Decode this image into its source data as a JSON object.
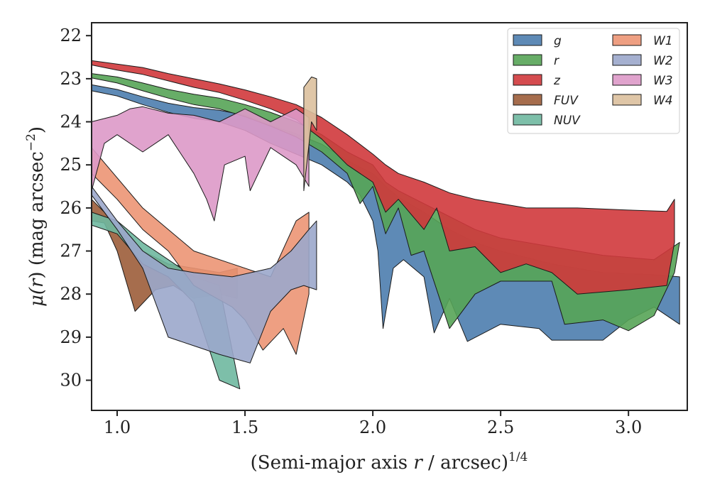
{
  "chart_data": {
    "type": "area",
    "xlabel": {
      "main": "(Semi-major axis ",
      "var": "r",
      "rest": " / arcsec)",
      "sup": "1/4"
    },
    "ylabel": {
      "mu": "μ(",
      "var": "r",
      "rest": ") (mag arcsec",
      "sup": "−2",
      "end": ")"
    },
    "xlim": [
      0.9,
      3.23
    ],
    "ylim": [
      30.7,
      21.7
    ],
    "y_inverted": true,
    "xticks": [
      1.0,
      1.5,
      2.0,
      2.5,
      3.0
    ],
    "xtick_labels": [
      "1.0",
      "1.5",
      "2.0",
      "2.5",
      "3.0"
    ],
    "yticks": [
      22,
      23,
      24,
      25,
      26,
      27,
      28,
      29,
      30
    ],
    "ytick_labels": [
      "22",
      "23",
      "24",
      "25",
      "26",
      "27",
      "28",
      "29",
      "30"
    ],
    "grid": false,
    "legend_position": "top-right",
    "legend_columns": 2,
    "series": [
      {
        "name": "g",
        "color": "#4c7dae",
        "upper": [
          [
            0.9,
            23.14
          ],
          [
            1.0,
            23.25
          ],
          [
            1.1,
            23.42
          ],
          [
            1.2,
            23.57
          ],
          [
            1.3,
            23.67
          ],
          [
            1.4,
            23.73
          ],
          [
            1.5,
            23.85
          ],
          [
            1.6,
            24.08
          ],
          [
            1.7,
            24.28
          ],
          [
            1.8,
            24.52
          ],
          [
            1.9,
            24.9
          ],
          [
            2.0,
            25.2
          ],
          [
            2.05,
            25.5
          ],
          [
            2.1,
            25.75
          ],
          [
            2.2,
            26.1
          ],
          [
            2.3,
            26.5
          ],
          [
            2.4,
            26.8
          ],
          [
            2.5,
            27.0
          ],
          [
            2.7,
            27.3
          ],
          [
            2.9,
            27.5
          ],
          [
            3.1,
            27.55
          ],
          [
            3.2,
            27.6
          ]
        ],
        "lower": [
          [
            0.9,
            23.28
          ],
          [
            1.0,
            23.4
          ],
          [
            1.1,
            23.6
          ],
          [
            1.2,
            23.78
          ],
          [
            1.3,
            23.92
          ],
          [
            1.4,
            24.0
          ],
          [
            1.5,
            24.2
          ],
          [
            1.6,
            24.5
          ],
          [
            1.7,
            24.75
          ],
          [
            1.8,
            25.0
          ],
          [
            1.9,
            25.4
          ],
          [
            1.95,
            25.7
          ],
          [
            2.0,
            26.3
          ],
          [
            2.02,
            27.0
          ],
          [
            2.04,
            28.8
          ],
          [
            2.08,
            27.4
          ],
          [
            2.12,
            27.2
          ],
          [
            2.2,
            27.6
          ],
          [
            2.24,
            28.9
          ],
          [
            2.3,
            28.1
          ],
          [
            2.37,
            29.1
          ],
          [
            2.5,
            28.7
          ],
          [
            2.65,
            28.8
          ],
          [
            2.7,
            29.07
          ],
          [
            2.9,
            29.07
          ],
          [
            3.0,
            28.6
          ],
          [
            3.1,
            28.3
          ],
          [
            3.2,
            28.7
          ]
        ]
      },
      {
        "name": "r",
        "color": "#56a456",
        "upper": [
          [
            0.9,
            22.88
          ],
          [
            1.0,
            22.96
          ],
          [
            1.1,
            23.1
          ],
          [
            1.2,
            23.25
          ],
          [
            1.3,
            23.36
          ],
          [
            1.4,
            23.45
          ],
          [
            1.5,
            23.6
          ],
          [
            1.6,
            23.78
          ],
          [
            1.7,
            24.0
          ],
          [
            1.8,
            24.3
          ],
          [
            1.9,
            24.7
          ],
          [
            2.0,
            25.0
          ],
          [
            2.05,
            25.4
          ],
          [
            2.1,
            25.6
          ],
          [
            2.2,
            25.9
          ],
          [
            2.3,
            26.2
          ],
          [
            2.4,
            26.5
          ],
          [
            2.5,
            26.7
          ],
          [
            2.7,
            26.9
          ],
          [
            2.9,
            27.1
          ],
          [
            3.1,
            27.2
          ],
          [
            3.2,
            26.8
          ]
        ],
        "lower": [
          [
            0.9,
            22.98
          ],
          [
            1.0,
            23.1
          ],
          [
            1.1,
            23.28
          ],
          [
            1.2,
            23.45
          ],
          [
            1.3,
            23.6
          ],
          [
            1.4,
            23.7
          ],
          [
            1.5,
            23.88
          ],
          [
            1.6,
            24.1
          ],
          [
            1.7,
            24.35
          ],
          [
            1.8,
            24.7
          ],
          [
            1.9,
            25.2
          ],
          [
            1.95,
            25.9
          ],
          [
            2.0,
            25.5
          ],
          [
            2.05,
            26.6
          ],
          [
            2.1,
            26.0
          ],
          [
            2.15,
            27.1
          ],
          [
            2.2,
            27.0
          ],
          [
            2.3,
            28.8
          ],
          [
            2.4,
            28.0
          ],
          [
            2.5,
            27.7
          ],
          [
            2.7,
            27.7
          ],
          [
            2.75,
            28.7
          ],
          [
            2.9,
            28.6
          ],
          [
            3.0,
            28.85
          ],
          [
            3.1,
            28.5
          ],
          [
            3.18,
            27.5
          ]
        ]
      },
      {
        "name": "z",
        "color": "#d0393c",
        "upper": [
          [
            0.9,
            22.58
          ],
          [
            1.0,
            22.66
          ],
          [
            1.1,
            22.74
          ],
          [
            1.2,
            22.88
          ],
          [
            1.3,
            23.0
          ],
          [
            1.4,
            23.12
          ],
          [
            1.5,
            23.26
          ],
          [
            1.6,
            23.42
          ],
          [
            1.7,
            23.6
          ],
          [
            1.8,
            23.9
          ],
          [
            1.9,
            24.3
          ],
          [
            2.0,
            24.75
          ],
          [
            2.05,
            25.0
          ],
          [
            2.1,
            25.2
          ],
          [
            2.2,
            25.4
          ],
          [
            2.3,
            25.65
          ],
          [
            2.4,
            25.8
          ],
          [
            2.5,
            25.9
          ],
          [
            2.6,
            26.0
          ],
          [
            2.8,
            26.0
          ],
          [
            3.0,
            26.05
          ],
          [
            3.15,
            26.08
          ],
          [
            3.18,
            25.8
          ]
        ],
        "lower": [
          [
            0.9,
            22.68
          ],
          [
            1.0,
            22.8
          ],
          [
            1.1,
            22.9
          ],
          [
            1.2,
            23.05
          ],
          [
            1.3,
            23.2
          ],
          [
            1.4,
            23.32
          ],
          [
            1.5,
            23.5
          ],
          [
            1.6,
            23.7
          ],
          [
            1.7,
            23.95
          ],
          [
            1.8,
            24.4
          ],
          [
            1.9,
            25.0
          ],
          [
            2.0,
            25.4
          ],
          [
            2.05,
            26.1
          ],
          [
            2.1,
            25.8
          ],
          [
            2.2,
            26.5
          ],
          [
            2.25,
            26.0
          ],
          [
            2.3,
            27.0
          ],
          [
            2.4,
            26.9
          ],
          [
            2.5,
            27.5
          ],
          [
            2.6,
            27.3
          ],
          [
            2.7,
            27.5
          ],
          [
            2.8,
            28.0
          ],
          [
            3.0,
            27.9
          ],
          [
            3.15,
            27.8
          ],
          [
            3.18,
            26.8
          ]
        ]
      },
      {
        "name": "FUV",
        "color": "#9c5d3a",
        "upper": [
          [
            0.9,
            25.8
          ],
          [
            0.95,
            26.1
          ],
          [
            1.0,
            26.5
          ],
          [
            1.1,
            27.0
          ],
          [
            1.2,
            27.3
          ],
          [
            1.3,
            27.4
          ],
          [
            1.4,
            27.5
          ],
          [
            1.47,
            27.4
          ]
        ],
        "lower": [
          [
            0.9,
            26.3
          ],
          [
            0.95,
            26.35
          ],
          [
            1.0,
            27.0
          ],
          [
            1.07,
            28.4
          ],
          [
            1.15,
            27.9
          ],
          [
            1.22,
            27.8
          ],
          [
            1.3,
            28.1
          ],
          [
            1.4,
            28.0
          ],
          [
            1.47,
            28.1
          ]
        ]
      },
      {
        "name": "NUV",
        "color": "#6fb8a0",
        "upper": [
          [
            0.9,
            26.1
          ],
          [
            1.0,
            26.3
          ],
          [
            1.1,
            26.8
          ],
          [
            1.2,
            27.2
          ],
          [
            1.3,
            27.6
          ],
          [
            1.4,
            27.8
          ]
        ],
        "lower": [
          [
            0.9,
            26.4
          ],
          [
            1.0,
            26.6
          ],
          [
            1.1,
            27.3
          ],
          [
            1.2,
            27.6
          ],
          [
            1.3,
            28.2
          ],
          [
            1.4,
            30.0
          ],
          [
            1.48,
            30.2
          ]
        ]
      },
      {
        "name": "W1",
        "color": "#ec9574",
        "upper": [
          [
            0.9,
            24.6
          ],
          [
            1.0,
            25.3
          ],
          [
            1.1,
            26.0
          ],
          [
            1.2,
            26.5
          ],
          [
            1.3,
            27.0
          ],
          [
            1.45,
            27.3
          ],
          [
            1.6,
            27.6
          ],
          [
            1.7,
            26.3
          ],
          [
            1.75,
            26.1
          ]
        ],
        "lower": [
          [
            0.9,
            25.2
          ],
          [
            1.0,
            25.8
          ],
          [
            1.1,
            26.5
          ],
          [
            1.2,
            27.0
          ],
          [
            1.3,
            27.8
          ],
          [
            1.45,
            28.3
          ],
          [
            1.5,
            28.6
          ],
          [
            1.57,
            29.3
          ],
          [
            1.65,
            28.8
          ],
          [
            1.7,
            29.4
          ],
          [
            1.75,
            28.0
          ]
        ]
      },
      {
        "name": "W2",
        "color": "#9ba7cb",
        "upper": [
          [
            0.9,
            25.5
          ],
          [
            1.0,
            26.3
          ],
          [
            1.1,
            27.0
          ],
          [
            1.2,
            27.4
          ],
          [
            1.3,
            27.5
          ],
          [
            1.45,
            27.6
          ],
          [
            1.6,
            27.4
          ],
          [
            1.68,
            27.0
          ],
          [
            1.75,
            26.5
          ],
          [
            1.78,
            26.3
          ]
        ],
        "lower": [
          [
            0.9,
            25.7
          ],
          [
            1.0,
            26.5
          ],
          [
            1.1,
            27.4
          ],
          [
            1.2,
            29.0
          ],
          [
            1.3,
            29.2
          ],
          [
            1.4,
            29.4
          ],
          [
            1.52,
            29.6
          ],
          [
            1.6,
            28.4
          ],
          [
            1.68,
            27.9
          ],
          [
            1.73,
            27.8
          ],
          [
            1.78,
            27.9
          ]
        ]
      },
      {
        "name": "W3",
        "color": "#dd99c8",
        "upper": [
          [
            0.9,
            24.0
          ],
          [
            1.0,
            23.85
          ],
          [
            1.05,
            23.7
          ],
          [
            1.1,
            23.65
          ],
          [
            1.2,
            23.8
          ],
          [
            1.3,
            23.85
          ],
          [
            1.4,
            24.0
          ],
          [
            1.5,
            23.7
          ],
          [
            1.6,
            24.0
          ],
          [
            1.7,
            23.7
          ],
          [
            1.75,
            23.9
          ]
        ],
        "lower": [
          [
            0.9,
            25.6
          ],
          [
            0.95,
            24.5
          ],
          [
            1.0,
            24.3
          ],
          [
            1.1,
            24.7
          ],
          [
            1.2,
            24.3
          ],
          [
            1.3,
            25.2
          ],
          [
            1.35,
            25.8
          ],
          [
            1.38,
            26.3
          ],
          [
            1.42,
            25.0
          ],
          [
            1.5,
            24.8
          ],
          [
            1.52,
            25.6
          ],
          [
            1.6,
            24.6
          ],
          [
            1.65,
            24.8
          ],
          [
            1.7,
            25.0
          ],
          [
            1.75,
            25.5
          ]
        ]
      },
      {
        "name": "W4",
        "color": "#dcc09d",
        "upper": [
          [
            1.73,
            23.2
          ],
          [
            1.76,
            22.96
          ],
          [
            1.78,
            23.0
          ]
        ],
        "lower": [
          [
            1.73,
            25.6
          ],
          [
            1.76,
            24.0
          ],
          [
            1.78,
            24.2
          ]
        ]
      }
    ]
  }
}
